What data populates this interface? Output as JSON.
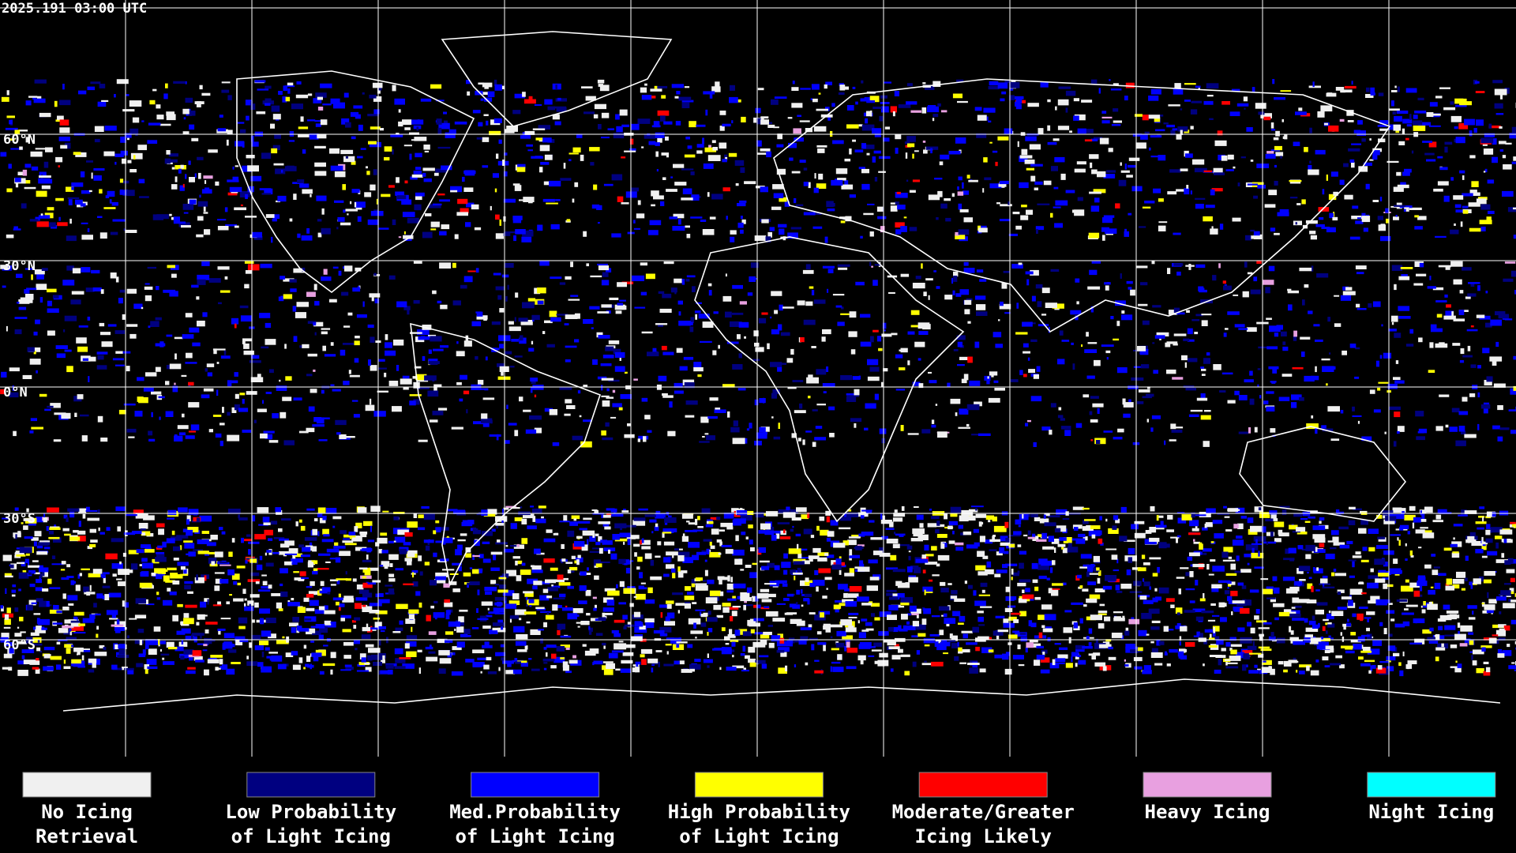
{
  "header": {
    "timestamp": "2025.191 03:00 UTC"
  },
  "map": {
    "latitude_labels": [
      "60°N",
      "30°N",
      "0°N",
      "30°S",
      "60°S"
    ]
  },
  "legend": {
    "items": [
      {
        "lines": [
          "No Icing",
          "Retrieval"
        ],
        "color": "#f0f0f0"
      },
      {
        "lines": [
          "Low Probability",
          "of Light Icing"
        ],
        "color": "#000080"
      },
      {
        "lines": [
          "Med.Probability",
          "of Light Icing"
        ],
        "color": "#0000ff"
      },
      {
        "lines": [
          "High Probability",
          "of Light Icing"
        ],
        "color": "#ffff00"
      },
      {
        "lines": [
          "Moderate/Greater",
          "Icing Likely"
        ],
        "color": "#ff0000"
      },
      {
        "lines": [
          "Heavy Icing"
        ],
        "color": "#e8a0e0"
      },
      {
        "lines": [
          "Night Icing"
        ],
        "color": "#00ffff"
      }
    ]
  }
}
